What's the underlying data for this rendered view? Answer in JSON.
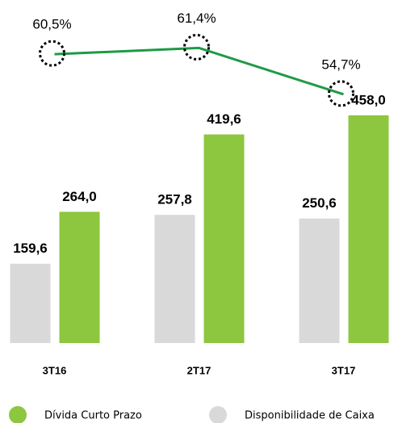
{
  "chart_data": {
    "type": "bar_line",
    "categories": [
      "3T16",
      "2T17",
      "3T17"
    ],
    "series": [
      {
        "name": "Disponibilidade de Caixa",
        "color": "#d9d9d9",
        "values": [
          159.6,
          257.8,
          250.6
        ],
        "value_labels": [
          "159,6",
          "257,8",
          "250,6"
        ]
      },
      {
        "name": "Dívida Curto Prazo",
        "color": "#8dc63f",
        "values": [
          264.0,
          419.6,
          458.0
        ],
        "value_labels": [
          "264,0",
          "419,6",
          "458,0"
        ]
      },
      {
        "color": "#1e9a46",
        "axis": "y2",
        "values": [
          60.5,
          61.4,
          54.7
        ],
        "value_labels": [
          "60,5%",
          "61,4%",
          "54,7%"
        ]
      }
    ],
    "ylim": [
      0,
      500
    ],
    "y2lim": [
      52,
      66
    ],
    "legend": [
      "Dívida Curto Prazo",
      "Disponibilidade de Caixa"
    ]
  }
}
